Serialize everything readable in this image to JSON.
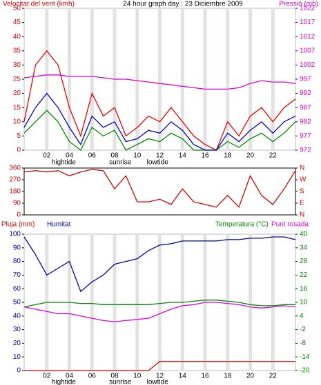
{
  "chart_data": [
    {
      "type": "line",
      "title": "24 hour graph day : 23 Diciembre 2009",
      "ylabel": "Velocitat del vent (kmh)",
      "y2label": "Pressió (mb)",
      "x": [
        0,
        1,
        2,
        3,
        4,
        5,
        6,
        7,
        8,
        9,
        10,
        11,
        12,
        13,
        14,
        15,
        16,
        17,
        18,
        19,
        20,
        21,
        22,
        23,
        24
      ],
      "xlim": [
        0,
        24
      ],
      "xticks": [
        {
          "value": 2,
          "label": "02"
        },
        {
          "value": 4,
          "label": "04"
        },
        {
          "value": 6,
          "label": "06"
        },
        {
          "value": 8,
          "label": "08"
        },
        10,
        12,
        14,
        16,
        18,
        20,
        22
      ],
      "ylim": [
        0,
        50
      ],
      "yticks": [
        0,
        5,
        10,
        15,
        20,
        25,
        30,
        35,
        40,
        45,
        50
      ],
      "ytick_color": "#dd0000",
      "y2lim": [
        972,
        1022
      ],
      "y2ticks": [
        972,
        977,
        982,
        987,
        992,
        997,
        1002,
        1007,
        1012,
        1017,
        1022
      ],
      "y2tick_color": "#cc00cc",
      "grid": true,
      "annotations": [
        {
          "text": "hightide",
          "x": 3.5
        },
        {
          "text": "sunrise",
          "x": 8.5
        },
        {
          "text": "lowtide",
          "x": 11.8
        }
      ],
      "series": [
        {
          "color": "#ee0000",
          "values": [
            10,
            30,
            35,
            30,
            15,
            5,
            20,
            12,
            15,
            5,
            8,
            12,
            10,
            15,
            10,
            5,
            2,
            0,
            10,
            5,
            12,
            15,
            10,
            15,
            18
          ]
        },
        {
          "color": "#008800",
          "values": [
            6,
            10,
            14,
            10,
            3,
            0,
            8,
            5,
            7,
            0,
            2,
            4,
            3,
            6,
            4,
            0,
            0,
            0,
            3,
            1,
            4,
            6,
            3,
            6,
            10
          ]
        },
        {
          "color": "#0000cc",
          "values": [
            8,
            15,
            20,
            15,
            8,
            2,
            12,
            8,
            10,
            3,
            4,
            7,
            6,
            10,
            7,
            2,
            0,
            0,
            6,
            3,
            7,
            10,
            6,
            10,
            12
          ]
        },
        {
          "color": "#dd00dd",
          "axis": "y2",
          "values": [
            997.5,
            998,
            998.5,
            998.5,
            998,
            998,
            998,
            997.5,
            997,
            997,
            996.5,
            996,
            995.5,
            995,
            994.5,
            994,
            993.5,
            993.5,
            993.5,
            994,
            995.5,
            996.5,
            996,
            996,
            995.5
          ]
        }
      ]
    },
    {
      "type": "line",
      "x": [
        0,
        1,
        2,
        3,
        4,
        5,
        6,
        7,
        8,
        9,
        10,
        11,
        12,
        13,
        14,
        15,
        16,
        17,
        18,
        19,
        20,
        21,
        22,
        23,
        24
      ],
      "xlim": [
        0,
        24
      ],
      "ylim": [
        0,
        360
      ],
      "yticks": [
        0,
        90,
        180,
        270,
        360
      ],
      "ytick_color": "#cc0000",
      "y2lim": [
        0,
        360
      ],
      "y2ticks": [
        {
          "value": 360,
          "label": "N"
        },
        {
          "value": 270,
          "label": "W"
        },
        {
          "value": 180,
          "label": "S"
        },
        {
          "value": 90,
          "label": "E"
        },
        {
          "value": 0,
          "label": "N"
        }
      ],
      "y2tick_color": "#cc0000",
      "series": [
        {
          "color": "#cc0000",
          "values": [
            330,
            340,
            330,
            340,
            300,
            330,
            350,
            340,
            200,
            300,
            100,
            100,
            120,
            80,
            200,
            100,
            80,
            60,
            150,
            60,
            300,
            150,
            80,
            200,
            340
          ]
        }
      ]
    },
    {
      "type": "line",
      "x": [
        0,
        1,
        2,
        3,
        4,
        5,
        6,
        7,
        8,
        9,
        10,
        11,
        12,
        13,
        14,
        15,
        16,
        17,
        18,
        19,
        20,
        21,
        22,
        23,
        24
      ],
      "xlim": [
        0,
        24
      ],
      "xticks": [
        {
          "value": 2,
          "label": "02"
        },
        {
          "value": 4,
          "label": "04"
        },
        {
          "value": 6,
          "label": "06"
        },
        {
          "value": 8,
          "label": "08"
        },
        10,
        12,
        14,
        16,
        18,
        20,
        22
      ],
      "ylim": [
        0,
        100
      ],
      "yticks": [
        0,
        10,
        20,
        30,
        40,
        50,
        60,
        70,
        80,
        90,
        100
      ],
      "ytick_color": "#0000aa",
      "y2lim": [
        -20,
        40
      ],
      "y2ticks": [
        -20,
        -14,
        -8,
        -2,
        4,
        10,
        16,
        22,
        28,
        34,
        40
      ],
      "y2tick_color": "#008800",
      "y3lim": [
        0,
        24
      ],
      "grid": true,
      "annotations": [
        {
          "text": "hightide",
          "x": 3.5
        },
        {
          "text": "sunrise",
          "x": 8.5
        },
        {
          "text": "lowtide",
          "x": 11.8
        }
      ],
      "series": [
        {
          "name": "Pluja (mm)",
          "color": "#cc0000",
          "axis": "y3",
          "values": [
            0,
            0,
            0,
            0,
            0,
            0,
            0,
            0,
            0,
            0,
            0,
            0,
            1.6,
            1.6,
            1.6,
            1.6,
            1.6,
            1.6,
            1.6,
            1.6,
            1.6,
            1.6,
            1.6,
            1.6,
            1.6
          ]
        },
        {
          "name": "Humitat",
          "color": "#0000aa",
          "values": [
            98,
            85,
            70,
            75,
            80,
            58,
            65,
            70,
            78,
            80,
            82,
            88,
            92,
            93,
            95,
            95,
            95,
            95,
            96,
            96,
            97,
            97,
            98,
            98,
            96
          ]
        },
        {
          "name": "Temperatura (°C)",
          "color": "#008800",
          "axis": "y2",
          "values": [
            8,
            9,
            10,
            10,
            10,
            9.5,
            9.5,
            9,
            9,
            9,
            9,
            9,
            9.5,
            10,
            10,
            10.5,
            11,
            11,
            10.5,
            10,
            9,
            8.5,
            8.5,
            9,
            9
          ]
        },
        {
          "name": "Punt rosada",
          "color": "#dd00dd",
          "axis": "y2",
          "values": [
            8,
            7,
            6,
            5,
            5,
            4,
            3,
            2,
            1.5,
            2,
            2.5,
            3,
            5,
            7,
            8.5,
            9,
            10,
            10,
            9.5,
            9,
            8,
            7.5,
            8,
            8.5,
            8
          ]
        }
      ]
    }
  ]
}
